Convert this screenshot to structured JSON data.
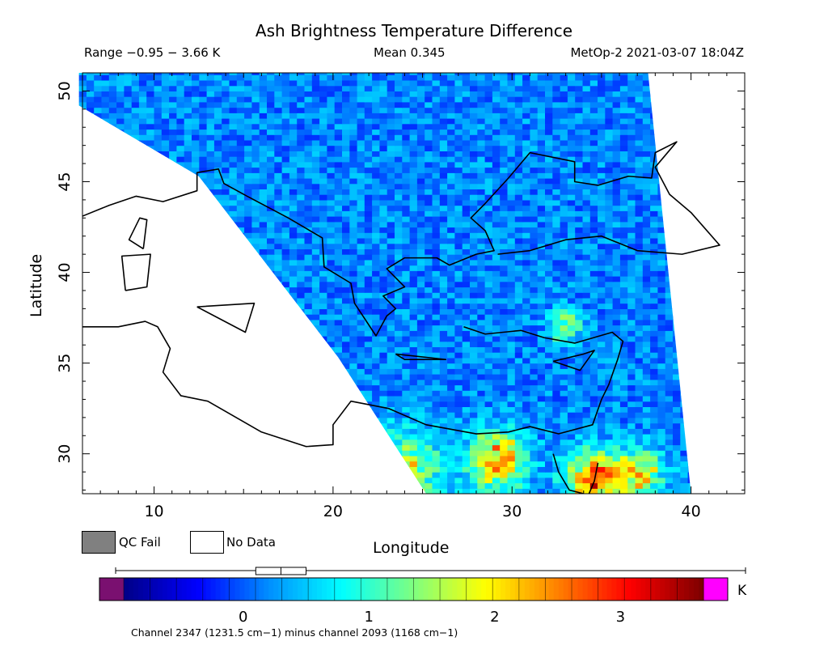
{
  "chart_data": {
    "type": "heatmap",
    "title": "Ash Brightness Temperature Difference",
    "range_label": "Range −0.95 − 3.66 K",
    "mean_label": "Mean 0.345",
    "satellite_label": "MetOp-2 2021-03-07 18:04Z",
    "xlabel": "Longitude",
    "ylabel": "Latitude",
    "xlim": [
      6,
      43
    ],
    "ylim": [
      27.8,
      51
    ],
    "xticks": [
      10,
      20,
      30,
      40
    ],
    "yticks": [
      30,
      35,
      40,
      45,
      50
    ],
    "swath_polygon": [
      [
        5.8,
        49.2
      ],
      [
        12.5,
        45.3
      ],
      [
        20.3,
        35.3
      ],
      [
        25.2,
        27.8
      ],
      [
        40.0,
        27.8
      ],
      [
        37.6,
        51.0
      ],
      [
        5.8,
        51.0
      ]
    ],
    "background_mean_k": 0.3,
    "hotspots": [
      {
        "lon": 23.5,
        "lat": 28.6,
        "value": 1.8,
        "radius": 2.3
      },
      {
        "lon": 29.0,
        "lat": 29.6,
        "value": 2.1,
        "radius": 1.6
      },
      {
        "lon": 34.5,
        "lat": 28.5,
        "value": 2.4,
        "radius": 1.6
      },
      {
        "lon": 37.0,
        "lat": 28.8,
        "value": 1.7,
        "radius": 1.3
      },
      {
        "lon": 32.8,
        "lat": 36.9,
        "value": 1.5,
        "radius": 0.9
      }
    ],
    "coast_lines": [
      [
        [
          6,
          43.1
        ],
        [
          7.5,
          43.7
        ],
        [
          9,
          44.2
        ],
        [
          10.5,
          43.9
        ],
        [
          12.4,
          44.5
        ],
        [
          12.4,
          45.5
        ],
        [
          13.6,
          45.7
        ],
        [
          13.9,
          44.9
        ],
        [
          15.2,
          44.2
        ],
        [
          17.5,
          43.0
        ],
        [
          19.4,
          41.9
        ],
        [
          19.5,
          40.3
        ],
        [
          21.0,
          39.4
        ],
        [
          21.2,
          38.3
        ],
        [
          22.4,
          36.5
        ],
        [
          23.0,
          37.6
        ],
        [
          23.5,
          38.0
        ],
        [
          22.8,
          38.7
        ],
        [
          24.0,
          39.2
        ],
        [
          23.0,
          40.2
        ],
        [
          24.0,
          40.8
        ],
        [
          25.8,
          40.8
        ],
        [
          26.5,
          40.4
        ],
        [
          28.0,
          41.0
        ],
        [
          29.0,
          41.2
        ],
        [
          28.5,
          42.3
        ],
        [
          27.7,
          43.0
        ],
        [
          28.5,
          43.8
        ],
        [
          29.8,
          45.2
        ],
        [
          31.0,
          46.6
        ],
        [
          33.5,
          46.1
        ],
        [
          33.5,
          45.0
        ],
        [
          34.8,
          44.8
        ],
        [
          36.5,
          45.3
        ],
        [
          37.8,
          45.2
        ],
        [
          38.0,
          46.6
        ],
        [
          39.2,
          47.2
        ],
        [
          38.0,
          45.8
        ],
        [
          38.8,
          44.3
        ],
        [
          40.0,
          43.3
        ],
        [
          41.6,
          41.5
        ],
        [
          39.5,
          41.0
        ],
        [
          37.0,
          41.2
        ],
        [
          35.0,
          42.0
        ],
        [
          33.0,
          41.8
        ],
        [
          31.0,
          41.2
        ],
        [
          29.2,
          41.0
        ]
      ],
      [
        [
          27.3,
          37.0
        ],
        [
          28.5,
          36.6
        ],
        [
          30.5,
          36.8
        ],
        [
          31.8,
          36.4
        ],
        [
          33.5,
          36.1
        ],
        [
          35.6,
          36.7
        ],
        [
          36.2,
          36.2
        ],
        [
          35.9,
          35.2
        ],
        [
          35.4,
          33.8
        ],
        [
          35.0,
          33.0
        ],
        [
          34.5,
          31.6
        ],
        [
          32.6,
          31.1
        ],
        [
          31.0,
          31.5
        ],
        [
          29.8,
          31.2
        ],
        [
          28.0,
          31.1
        ],
        [
          25.2,
          31.6
        ],
        [
          23.1,
          32.5
        ],
        [
          21.0,
          32.9
        ],
        [
          20.0,
          31.6
        ],
        [
          20.0,
          30.5
        ],
        [
          18.5,
          30.4
        ],
        [
          16.0,
          31.2
        ],
        [
          13.0,
          32.9
        ],
        [
          11.5,
          33.2
        ],
        [
          10.5,
          34.5
        ],
        [
          10.9,
          35.8
        ],
        [
          10.2,
          37.0
        ],
        [
          9.5,
          37.3
        ],
        [
          8.0,
          37.0
        ],
        [
          6.0,
          37.0
        ]
      ],
      [
        [
          32.3,
          30.0
        ],
        [
          32.6,
          29.0
        ],
        [
          33.2,
          28.0
        ],
        [
          34.0,
          27.8
        ]
      ],
      [
        [
          34.8,
          29.5
        ],
        [
          34.6,
          28.5
        ],
        [
          34.3,
          27.8
        ]
      ]
    ],
    "islands": [
      [
        [
          9.4,
          41.3
        ],
        [
          9.6,
          42.9
        ],
        [
          9.2,
          43.0
        ],
        [
          8.6,
          41.8
        ],
        [
          9.4,
          41.3
        ]
      ],
      [
        [
          8.4,
          39.0
        ],
        [
          9.6,
          39.2
        ],
        [
          9.8,
          41.0
        ],
        [
          8.2,
          40.9
        ],
        [
          8.4,
          39.0
        ]
      ],
      [
        [
          12.4,
          38.1
        ],
        [
          15.6,
          38.3
        ],
        [
          15.1,
          36.7
        ],
        [
          12.4,
          38.1
        ]
      ],
      [
        [
          23.5,
          35.5
        ],
        [
          26.3,
          35.2
        ],
        [
          24.0,
          35.2
        ],
        [
          23.5,
          35.5
        ]
      ],
      [
        [
          32.3,
          35.1
        ],
        [
          34.0,
          35.5
        ],
        [
          34.6,
          35.7
        ],
        [
          33.8,
          34.6
        ],
        [
          32.3,
          35.1
        ]
      ]
    ]
  },
  "legend": {
    "qc_fail": "QC Fail",
    "no_data": "No Data",
    "qc_fail_color": "#808080",
    "no_data_color": "#ffffff"
  },
  "colorbar": {
    "min": -0.95,
    "max": 3.66,
    "ticks": [
      0,
      1,
      2,
      3
    ],
    "unit": "K",
    "under_color": "#7a1070",
    "over_color": "#ff00ff",
    "stops": [
      "#00008a",
      "#0000ff",
      "#0090ff",
      "#00ffff",
      "#7fff7f",
      "#ffff00",
      "#ff8000",
      "#ff0000",
      "#800000"
    ],
    "box_q1": 0.1,
    "box_median": 0.3,
    "box_q3": 0.5
  },
  "footer": "Channel 2347 (1231.5 cm−1) minus channel 2093 (1168 cm−1)"
}
